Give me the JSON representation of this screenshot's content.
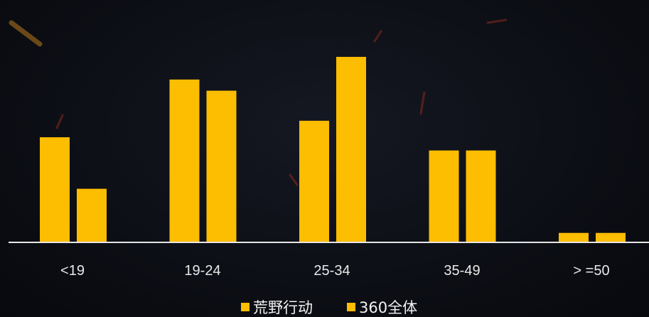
{
  "chart_data": {
    "type": "bar",
    "categories": [
      "<19",
      "19-24",
      "25-34",
      "35-49",
      ">=50"
    ],
    "tick_labels": [
      "<19",
      "19-24",
      "25-34",
      "35-49",
      "> =50"
    ],
    "series": [
      {
        "name": "荒野行动",
        "values": [
          25.5,
          39.5,
          29.5,
          22.3,
          2.3
        ]
      },
      {
        "name": "360全体",
        "values": [
          13.0,
          36.8,
          45.0,
          22.3,
          2.3
        ]
      }
    ],
    "ylim": [
      0,
      50
    ],
    "grid": false,
    "legend_position": "bottom-center",
    "colors": {
      "bar": "#fdbd00",
      "baseline": "#e6e6e6",
      "text": "#e8e8e8"
    }
  }
}
